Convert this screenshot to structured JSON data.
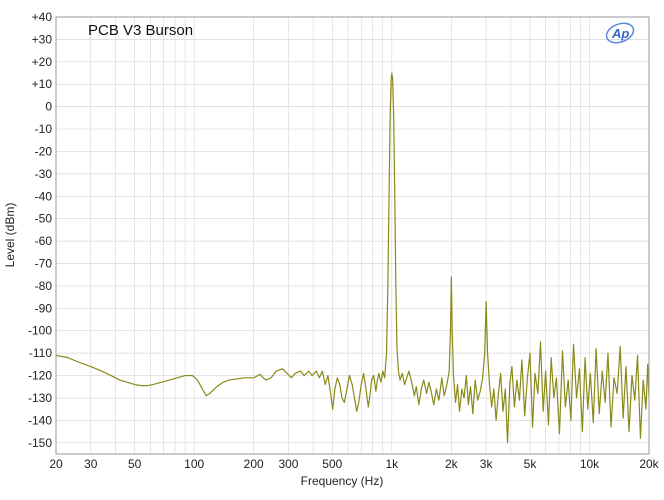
{
  "chart_data": {
    "type": "line",
    "title": "PCB V3 Burson",
    "xlabel": "Frequency (Hz)",
    "ylabel": "Level (dBm)",
    "xscale": "log",
    "xlim": [
      20,
      20000
    ],
    "ylim": [
      -155,
      40
    ],
    "grid": true,
    "colors": {
      "trace": "#8a8a1a",
      "grid": "#d6d6d6",
      "plot_border": "#9a9a9a"
    },
    "x_ticks": [
      {
        "value": 20,
        "label": "20"
      },
      {
        "value": 30,
        "label": "30"
      },
      {
        "value": 50,
        "label": "50"
      },
      {
        "value": 100,
        "label": "100"
      },
      {
        "value": 200,
        "label": "200"
      },
      {
        "value": 300,
        "label": "300"
      },
      {
        "value": 500,
        "label": "500"
      },
      {
        "value": 1000,
        "label": "1k"
      },
      {
        "value": 2000,
        "label": "2k"
      },
      {
        "value": 3000,
        "label": "3k"
      },
      {
        "value": 5000,
        "label": "5k"
      },
      {
        "value": 10000,
        "label": "10k"
      },
      {
        "value": 20000,
        "label": "20k"
      }
    ],
    "y_ticks": [
      {
        "value": 40,
        "label": "+40"
      },
      {
        "value": 30,
        "label": "+30"
      },
      {
        "value": 20,
        "label": "+20"
      },
      {
        "value": 10,
        "label": "+10"
      },
      {
        "value": 0,
        "label": "0"
      },
      {
        "value": -10,
        "label": "-10"
      },
      {
        "value": -20,
        "label": "-20"
      },
      {
        "value": -30,
        "label": "-30"
      },
      {
        "value": -40,
        "label": "-40"
      },
      {
        "value": -50,
        "label": "-50"
      },
      {
        "value": -60,
        "label": "-60"
      },
      {
        "value": -70,
        "label": "-70"
      },
      {
        "value": -80,
        "label": "-80"
      },
      {
        "value": -90,
        "label": "-90"
      },
      {
        "value": -100,
        "label": "-100"
      },
      {
        "value": -110,
        "label": "-110"
      },
      {
        "value": -120,
        "label": "-120"
      },
      {
        "value": -130,
        "label": "-130"
      },
      {
        "value": -140,
        "label": "-140"
      },
      {
        "value": -150,
        "label": "-150"
      }
    ],
    "series": [
      {
        "color": "#8a8a1a",
        "points": [
          [
            20,
            -111
          ],
          [
            23,
            -112
          ],
          [
            26,
            -114
          ],
          [
            30,
            -116
          ],
          [
            34,
            -118
          ],
          [
            38,
            -120
          ],
          [
            42,
            -122
          ],
          [
            46,
            -123
          ],
          [
            50,
            -124
          ],
          [
            54,
            -124.5
          ],
          [
            58,
            -124.5
          ],
          [
            62,
            -124
          ],
          [
            68,
            -123
          ],
          [
            75,
            -122
          ],
          [
            82,
            -121
          ],
          [
            90,
            -120
          ],
          [
            98,
            -120
          ],
          [
            104,
            -122
          ],
          [
            110,
            -126
          ],
          [
            115,
            -129
          ],
          [
            120,
            -128
          ],
          [
            130,
            -125
          ],
          [
            140,
            -123
          ],
          [
            150,
            -122
          ],
          [
            165,
            -121.5
          ],
          [
            180,
            -121
          ],
          [
            200,
            -121
          ],
          [
            215,
            -119.5
          ],
          [
            230,
            -122
          ],
          [
            245,
            -121
          ],
          [
            260,
            -118
          ],
          [
            280,
            -117
          ],
          [
            295,
            -119
          ],
          [
            310,
            -121
          ],
          [
            325,
            -119
          ],
          [
            345,
            -118
          ],
          [
            360,
            -120
          ],
          [
            380,
            -118
          ],
          [
            395,
            -120
          ],
          [
            415,
            -118
          ],
          [
            430,
            -121
          ],
          [
            445,
            -118
          ],
          [
            460,
            -124
          ],
          [
            475,
            -120
          ],
          [
            490,
            -128
          ],
          [
            502,
            -135
          ],
          [
            515,
            -126
          ],
          [
            530,
            -121
          ],
          [
            545,
            -124
          ],
          [
            560,
            -130
          ],
          [
            575,
            -132
          ],
          [
            590,
            -127
          ],
          [
            610,
            -120
          ],
          [
            630,
            -124
          ],
          [
            650,
            -131
          ],
          [
            665,
            -136
          ],
          [
            680,
            -132
          ],
          [
            700,
            -124
          ],
          [
            720,
            -119
          ],
          [
            740,
            -126
          ],
          [
            760,
            -134
          ],
          [
            775,
            -129
          ],
          [
            790,
            -122
          ],
          [
            810,
            -120
          ],
          [
            830,
            -127
          ],
          [
            845,
            -122
          ],
          [
            860,
            -119
          ],
          [
            880,
            -123
          ],
          [
            900,
            -118
          ],
          [
            920,
            -121
          ],
          [
            940,
            -110
          ],
          [
            955,
            -80
          ],
          [
            968,
            -40
          ],
          [
            980,
            -5
          ],
          [
            992,
            12
          ],
          [
            1000,
            15
          ],
          [
            1010,
            12
          ],
          [
            1022,
            -5
          ],
          [
            1035,
            -40
          ],
          [
            1048,
            -80
          ],
          [
            1062,
            -108
          ],
          [
            1080,
            -118
          ],
          [
            1100,
            -122
          ],
          [
            1130,
            -119
          ],
          [
            1160,
            -124
          ],
          [
            1190,
            -121
          ],
          [
            1220,
            -118
          ],
          [
            1260,
            -123
          ],
          [
            1300,
            -129
          ],
          [
            1330,
            -125
          ],
          [
            1370,
            -133
          ],
          [
            1410,
            -126
          ],
          [
            1450,
            -122
          ],
          [
            1500,
            -128
          ],
          [
            1540,
            -123
          ],
          [
            1580,
            -127
          ],
          [
            1630,
            -133
          ],
          [
            1680,
            -126
          ],
          [
            1730,
            -131
          ],
          [
            1790,
            -121
          ],
          [
            1840,
            -129
          ],
          [
            1900,
            -124
          ],
          [
            1950,
            -118
          ],
          [
            1980,
            -100
          ],
          [
            2000,
            -76
          ],
          [
            2020,
            -100
          ],
          [
            2050,
            -120
          ],
          [
            2100,
            -132
          ],
          [
            2150,
            -124
          ],
          [
            2200,
            -136
          ],
          [
            2260,
            -126
          ],
          [
            2320,
            -130
          ],
          [
            2380,
            -120
          ],
          [
            2440,
            -133
          ],
          [
            2500,
            -125
          ],
          [
            2570,
            -137
          ],
          [
            2640,
            -122
          ],
          [
            2720,
            -131
          ],
          [
            2800,
            -127
          ],
          [
            2880,
            -121
          ],
          [
            2950,
            -110
          ],
          [
            3000,
            -87
          ],
          [
            3050,
            -110
          ],
          [
            3120,
            -124
          ],
          [
            3200,
            -134
          ],
          [
            3280,
            -126
          ],
          [
            3370,
            -140
          ],
          [
            3460,
            -128
          ],
          [
            3550,
            -119
          ],
          [
            3650,
            -136
          ],
          [
            3750,
            -126
          ],
          [
            3850,
            -150
          ],
          [
            3950,
            -124
          ],
          [
            4050,
            -116
          ],
          [
            4170,
            -134
          ],
          [
            4290,
            -122
          ],
          [
            4420,
            -131
          ],
          [
            4550,
            -113
          ],
          [
            4700,
            -138
          ],
          [
            4850,
            -121
          ],
          [
            5000,
            -110
          ],
          [
            5150,
            -143
          ],
          [
            5300,
            -119
          ],
          [
            5480,
            -128
          ],
          [
            5650,
            -105
          ],
          [
            5830,
            -136
          ],
          [
            6000,
            -118
          ],
          [
            6200,
            -142
          ],
          [
            6400,
            -112
          ],
          [
            6600,
            -130
          ],
          [
            6800,
            -121
          ],
          [
            7050,
            -146
          ],
          [
            7300,
            -109
          ],
          [
            7550,
            -134
          ],
          [
            7800,
            -122
          ],
          [
            8050,
            -140
          ],
          [
            8300,
            -106
          ],
          [
            8600,
            -130
          ],
          [
            8900,
            -117
          ],
          [
            9200,
            -145
          ],
          [
            9500,
            -112
          ],
          [
            9800,
            -135
          ],
          [
            10100,
            -119
          ],
          [
            10450,
            -141
          ],
          [
            10800,
            -108
          ],
          [
            11200,
            -137
          ],
          [
            11600,
            -118
          ],
          [
            12000,
            -132
          ],
          [
            12400,
            -110
          ],
          [
            12850,
            -143
          ],
          [
            13300,
            -121
          ],
          [
            13800,
            -128
          ],
          [
            14300,
            -107
          ],
          [
            14800,
            -139
          ],
          [
            15300,
            -116
          ],
          [
            15850,
            -145
          ],
          [
            16400,
            -120
          ],
          [
            16950,
            -131
          ],
          [
            17500,
            -111
          ],
          [
            18100,
            -148
          ],
          [
            18700,
            -122
          ],
          [
            19300,
            -135
          ],
          [
            19700,
            -115
          ],
          [
            20000,
            -130
          ]
        ]
      }
    ]
  },
  "logo": {
    "text": "Ap"
  }
}
